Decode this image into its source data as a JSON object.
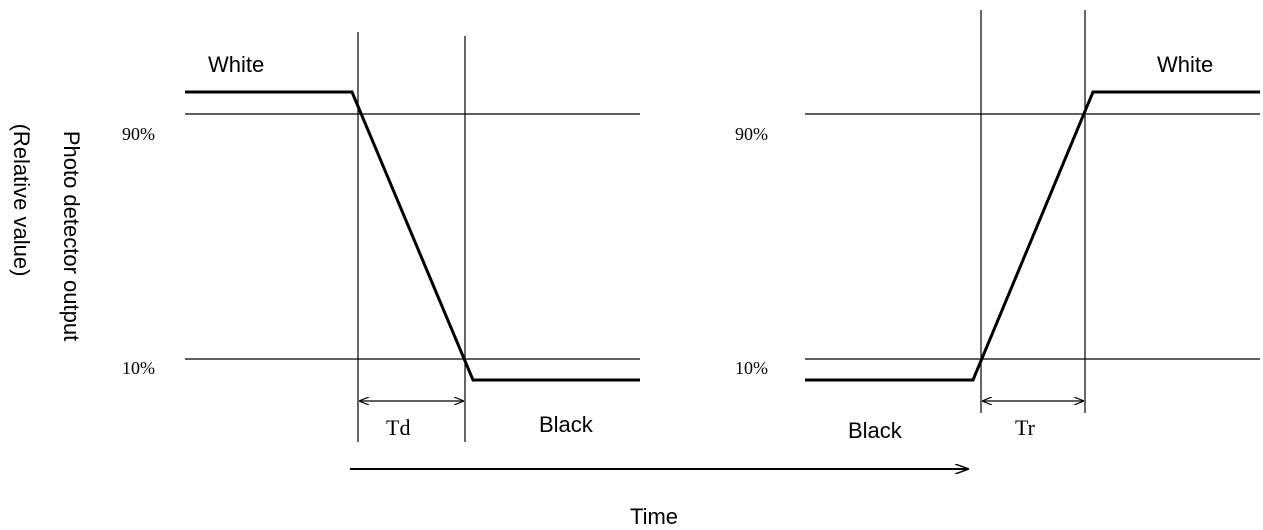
{
  "y_axis": {
    "line1": "Photo detector output",
    "line2": "(Relative value)"
  },
  "x_axis_label": "Time",
  "left_panel": {
    "top_state": "White",
    "bottom_state": "Black",
    "level_high": "90%",
    "level_low": "10%",
    "interval_label": "Td"
  },
  "right_panel": {
    "top_state": "White",
    "bottom_state": "Black",
    "level_high": "90%",
    "level_low": "10%",
    "interval_label": "Tr"
  }
}
